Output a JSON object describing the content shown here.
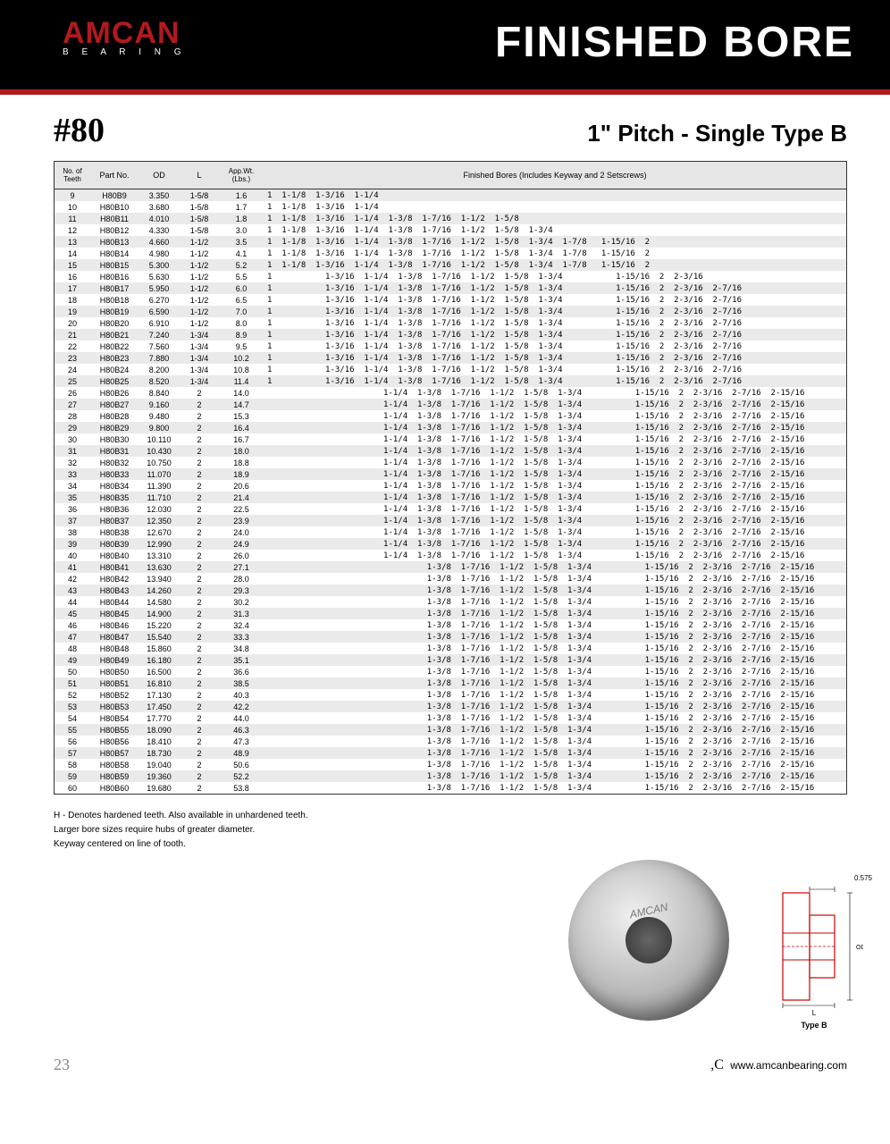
{
  "header": {
    "logo_main": "AMCAN",
    "logo_sub": "B E A R I N G",
    "title": "FINISHED BORE"
  },
  "subhead": {
    "left": "#80",
    "right": "1\" Pitch - Single Type B"
  },
  "columns": [
    "No. of Teeth",
    "Part No.",
    "OD",
    "L",
    "App.Wt. (Lbs.)",
    "Finished Bores (Includes Keyway and 2 Setscrews)"
  ],
  "bore_groups": {
    "g1": "1  1-1/8  1-3/16  1-1/4",
    "g2": "1  1-1/8  1-3/16  1-1/4  1-3/8  1-7/16  1-1/2  1-5/8",
    "g3": "1  1-1/8  1-3/16  1-1/4  1-3/8  1-7/16  1-1/2  1-5/8  1-3/4",
    "g4": "1  1-1/8  1-3/16  1-1/4  1-3/8  1-7/16  1-1/2  1-5/8  1-3/4  1-7/8   1-15/16  2",
    "g5": "1           1-3/16  1-1/4  1-3/8  1-7/16  1-1/2  1-5/8  1-3/4           1-15/16  2  2-3/16",
    "g6": "1           1-3/16  1-1/4  1-3/8  1-7/16  1-1/2  1-5/8  1-3/4           1-15/16  2  2-3/16  2-7/16",
    "g7": "1           1-3/16  1-1/4  1-3/8  1-7/16  1-1/2  1-5/8  1-3/4           1-15/16  2  2-3/16  2-7/16",
    "g8": "                        1-1/4  1-3/8  1-7/16  1-1/2  1-5/8  1-3/4           1-15/16  2  2-3/16  2-7/16  2-15/16",
    "g9": "                                 1-3/8  1-7/16  1-1/2  1-5/8  1-3/4           1-15/16  2  2-3/16  2-7/16  2-15/16"
  },
  "rows": [
    {
      "t": 9,
      "p": "H80B9",
      "od": "3.350",
      "l": "1-5/8",
      "w": "1.6",
      "b": "g1"
    },
    {
      "t": 10,
      "p": "H80B10",
      "od": "3.680",
      "l": "1-5/8",
      "w": "1.7",
      "b": "g1"
    },
    {
      "t": 11,
      "p": "H80B11",
      "od": "4.010",
      "l": "1-5/8",
      "w": "1.8",
      "b": "g2"
    },
    {
      "t": 12,
      "p": "H80B12",
      "od": "4.330",
      "l": "1-5/8",
      "w": "3.0",
      "b": "g3"
    },
    {
      "t": 13,
      "p": "H80B13",
      "od": "4.660",
      "l": "1-1/2",
      "w": "3.5",
      "b": "g4"
    },
    {
      "t": 14,
      "p": "H80B14",
      "od": "4.980",
      "l": "1-1/2",
      "w": "4.1",
      "b": "g4"
    },
    {
      "t": 15,
      "p": "H80B15",
      "od": "5.300",
      "l": "1-1/2",
      "w": "5.2",
      "b": "g4"
    },
    {
      "t": 16,
      "p": "H80B16",
      "od": "5.630",
      "l": "1-1/2",
      "w": "5.5",
      "b": "g5"
    },
    {
      "t": 17,
      "p": "H80B17",
      "od": "5.950",
      "l": "1-1/2",
      "w": "6.0",
      "b": "g6"
    },
    {
      "t": 18,
      "p": "H80B18",
      "od": "6.270",
      "l": "1-1/2",
      "w": "6.5",
      "b": "g6"
    },
    {
      "t": 19,
      "p": "H80B19",
      "od": "6.590",
      "l": "1-1/2",
      "w": "7.0",
      "b": "g6"
    },
    {
      "t": 20,
      "p": "H80B20",
      "od": "6.910",
      "l": "1-1/2",
      "w": "8.0",
      "b": "g6"
    },
    {
      "t": 21,
      "p": "H80B21",
      "od": "7.240",
      "l": "1-3/4",
      "w": "8.9",
      "b": "g6"
    },
    {
      "t": 22,
      "p": "H80B22",
      "od": "7.560",
      "l": "1-3/4",
      "w": "9.5",
      "b": "g6"
    },
    {
      "t": 23,
      "p": "H80B23",
      "od": "7.880",
      "l": "1-3/4",
      "w": "10.2",
      "b": "g6"
    },
    {
      "t": 24,
      "p": "H80B24",
      "od": "8.200",
      "l": "1-3/4",
      "w": "10.8",
      "b": "g6"
    },
    {
      "t": 25,
      "p": "H80B25",
      "od": "8.520",
      "l": "1-3/4",
      "w": "11.4",
      "b": "g7"
    },
    {
      "t": 26,
      "p": "H80B26",
      "od": "8.840",
      "l": "2",
      "w": "14.0",
      "b": "g8"
    },
    {
      "t": 27,
      "p": "H80B27",
      "od": "9.160",
      "l": "2",
      "w": "14.7",
      "b": "g8"
    },
    {
      "t": 28,
      "p": "H80B28",
      "od": "9.480",
      "l": "2",
      "w": "15.3",
      "b": "g8"
    },
    {
      "t": 29,
      "p": "H80B29",
      "od": "9.800",
      "l": "2",
      "w": "16.4",
      "b": "g8"
    },
    {
      "t": 30,
      "p": "H80B30",
      "od": "10.110",
      "l": "2",
      "w": "16.7",
      "b": "g8"
    },
    {
      "t": 31,
      "p": "H80B31",
      "od": "10.430",
      "l": "2",
      "w": "18.0",
      "b": "g8"
    },
    {
      "t": 32,
      "p": "H80B32",
      "od": "10.750",
      "l": "2",
      "w": "18.8",
      "b": "g8"
    },
    {
      "t": 33,
      "p": "H80B33",
      "od": "11.070",
      "l": "2",
      "w": "18.9",
      "b": "g8"
    },
    {
      "t": 34,
      "p": "H80B34",
      "od": "11.390",
      "l": "2",
      "w": "20.6",
      "b": "g8"
    },
    {
      "t": 35,
      "p": "H80B35",
      "od": "11.710",
      "l": "2",
      "w": "21.4",
      "b": "g8"
    },
    {
      "t": 36,
      "p": "H80B36",
      "od": "12.030",
      "l": "2",
      "w": "22.5",
      "b": "g8"
    },
    {
      "t": 37,
      "p": "H80B37",
      "od": "12.350",
      "l": "2",
      "w": "23.9",
      "b": "g8"
    },
    {
      "t": 38,
      "p": "H80B38",
      "od": "12.670",
      "l": "2",
      "w": "24.0",
      "b": "g8"
    },
    {
      "t": 39,
      "p": "H80B39",
      "od": "12.990",
      "l": "2",
      "w": "24.9",
      "b": "g8"
    },
    {
      "t": 40,
      "p": "H80B40",
      "od": "13.310",
      "l": "2",
      "w": "26.0",
      "b": "g8"
    },
    {
      "t": 41,
      "p": "H80B41",
      "od": "13.630",
      "l": "2",
      "w": "27.1",
      "b": "g9"
    },
    {
      "t": 42,
      "p": "H80B42",
      "od": "13.940",
      "l": "2",
      "w": "28.0",
      "b": "g9"
    },
    {
      "t": 43,
      "p": "H80B43",
      "od": "14.260",
      "l": "2",
      "w": "29.3",
      "b": "g9"
    },
    {
      "t": 44,
      "p": "H80B44",
      "od": "14.580",
      "l": "2",
      "w": "30.2",
      "b": "g9"
    },
    {
      "t": 45,
      "p": "H80B45",
      "od": "14.900",
      "l": "2",
      "w": "31.3",
      "b": "g9"
    },
    {
      "t": 46,
      "p": "H80B46",
      "od": "15.220",
      "l": "2",
      "w": "32.4",
      "b": "g9"
    },
    {
      "t": 47,
      "p": "H80B47",
      "od": "15.540",
      "l": "2",
      "w": "33.3",
      "b": "g9"
    },
    {
      "t": 48,
      "p": "H80B48",
      "od": "15.860",
      "l": "2",
      "w": "34.8",
      "b": "g9"
    },
    {
      "t": 49,
      "p": "H80B49",
      "od": "16.180",
      "l": "2",
      "w": "35.1",
      "b": "g9"
    },
    {
      "t": 50,
      "p": "H80B50",
      "od": "16.500",
      "l": "2",
      "w": "36.6",
      "b": "g9"
    },
    {
      "t": 51,
      "p": "H80B51",
      "od": "16.810",
      "l": "2",
      "w": "38.5",
      "b": "g9"
    },
    {
      "t": 52,
      "p": "H80B52",
      "od": "17.130",
      "l": "2",
      "w": "40.3",
      "b": "g9"
    },
    {
      "t": 53,
      "p": "H80B53",
      "od": "17.450",
      "l": "2",
      "w": "42.2",
      "b": "g9"
    },
    {
      "t": 54,
      "p": "H80B54",
      "od": "17.770",
      "l": "2",
      "w": "44.0",
      "b": "g9"
    },
    {
      "t": 55,
      "p": "H80B55",
      "od": "18.090",
      "l": "2",
      "w": "46.3",
      "b": "g9"
    },
    {
      "t": 56,
      "p": "H80B56",
      "od": "18.410",
      "l": "2",
      "w": "47.3",
      "b": "g9"
    },
    {
      "t": 57,
      "p": "H80B57",
      "od": "18.730",
      "l": "2",
      "w": "48.9",
      "b": "g9"
    },
    {
      "t": 58,
      "p": "H80B58",
      "od": "19.040",
      "l": "2",
      "w": "50.6",
      "b": "g9"
    },
    {
      "t": 59,
      "p": "H80B59",
      "od": "19.360",
      "l": "2",
      "w": "52.2",
      "b": "g9"
    },
    {
      "t": 60,
      "p": "H80B60",
      "od": "19.680",
      "l": "2",
      "w": "53.8",
      "b": "g9"
    }
  ],
  "notes": [
    "H - Denotes hardened teeth. Also available in unhardened teeth.",
    "Larger bore sizes require hubs of greater diameter.",
    "Keyway centered on line of tooth."
  ],
  "diagram": {
    "top_dim": "0.575",
    "side_dim": "OD",
    "bottom_dim": "L",
    "label": "Type  B"
  },
  "sprocket_brand": "AMCAN",
  "footer": {
    "page": "23",
    "url": "www.amcanbearing.com"
  },
  "colors": {
    "red": "#b01a1e",
    "black": "#000000",
    "row_alt": "#eaeaea",
    "header_bg": "#e6e6e6"
  }
}
